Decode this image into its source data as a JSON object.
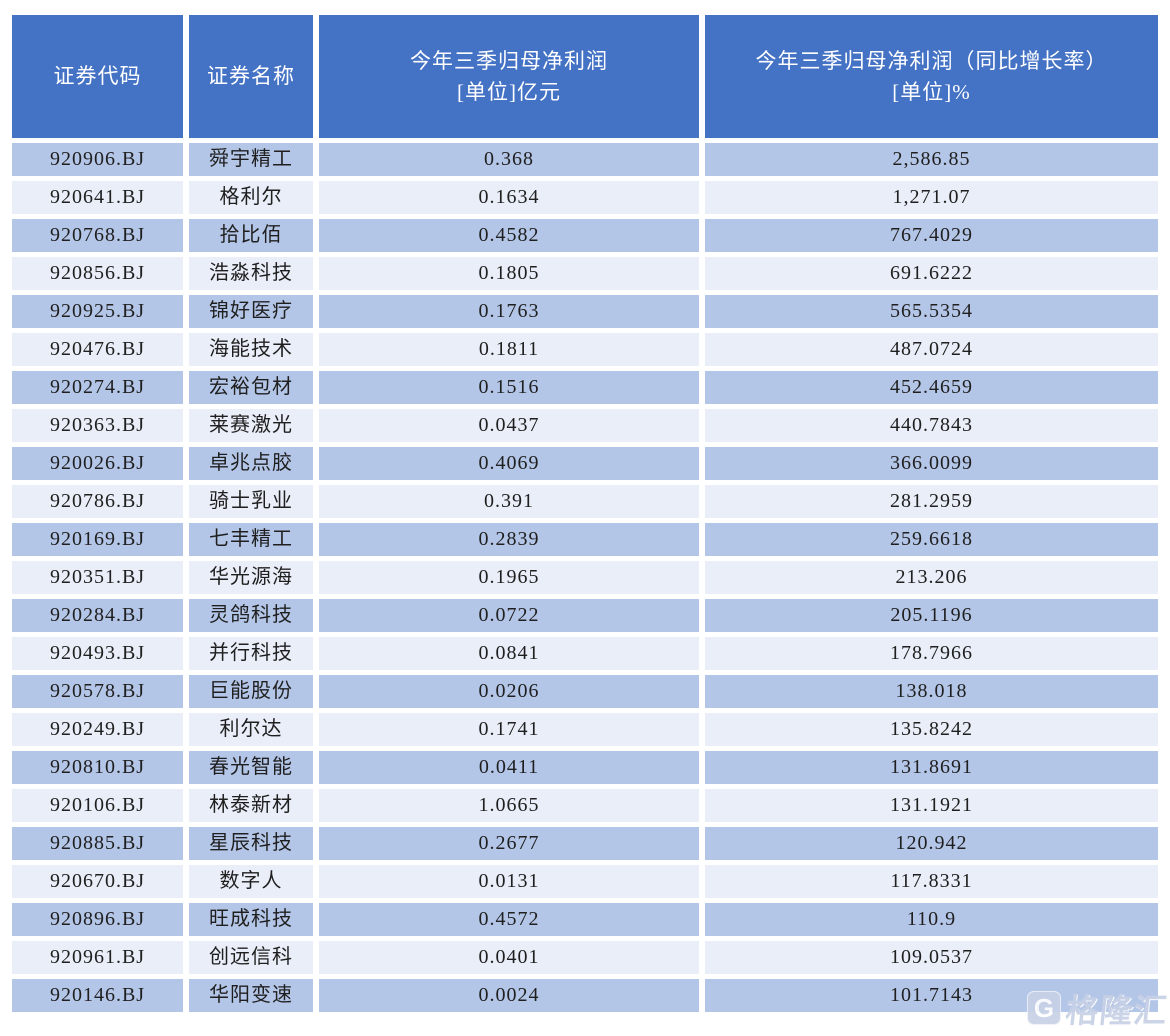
{
  "chart_data": {
    "type": "table",
    "columns": [
      {
        "line1": "证券代码",
        "line2": ""
      },
      {
        "line1": "证券名称",
        "line2": ""
      },
      {
        "line1": "今年三季归母净利润",
        "line2": "[单位]亿元"
      },
      {
        "line1": "今年三季归母净利润（同比增长率）",
        "line2": "[单位]%"
      }
    ],
    "rows": [
      {
        "code": "920906.BJ",
        "name": "舜宇精工",
        "profit": "0.368",
        "growth": "2,586.85"
      },
      {
        "code": "920641.BJ",
        "name": "格利尔",
        "profit": "0.1634",
        "growth": "1,271.07"
      },
      {
        "code": "920768.BJ",
        "name": "拾比佰",
        "profit": "0.4582",
        "growth": "767.4029"
      },
      {
        "code": "920856.BJ",
        "name": "浩淼科技",
        "profit": "0.1805",
        "growth": "691.6222"
      },
      {
        "code": "920925.BJ",
        "name": "锦好医疗",
        "profit": "0.1763",
        "growth": "565.5354"
      },
      {
        "code": "920476.BJ",
        "name": "海能技术",
        "profit": "0.1811",
        "growth": "487.0724"
      },
      {
        "code": "920274.BJ",
        "name": "宏裕包材",
        "profit": "0.1516",
        "growth": "452.4659"
      },
      {
        "code": "920363.BJ",
        "name": "莱赛激光",
        "profit": "0.0437",
        "growth": "440.7843"
      },
      {
        "code": "920026.BJ",
        "name": "卓兆点胶",
        "profit": "0.4069",
        "growth": "366.0099"
      },
      {
        "code": "920786.BJ",
        "name": "骑士乳业",
        "profit": "0.391",
        "growth": "281.2959"
      },
      {
        "code": "920169.BJ",
        "name": "七丰精工",
        "profit": "0.2839",
        "growth": "259.6618"
      },
      {
        "code": "920351.BJ",
        "name": "华光源海",
        "profit": "0.1965",
        "growth": "213.206"
      },
      {
        "code": "920284.BJ",
        "name": "灵鸽科技",
        "profit": "0.0722",
        "growth": "205.1196"
      },
      {
        "code": "920493.BJ",
        "name": "并行科技",
        "profit": "0.0841",
        "growth": "178.7966"
      },
      {
        "code": "920578.BJ",
        "name": "巨能股份",
        "profit": "0.0206",
        "growth": "138.018"
      },
      {
        "code": "920249.BJ",
        "name": "利尔达",
        "profit": "0.1741",
        "growth": "135.8242"
      },
      {
        "code": "920810.BJ",
        "name": "春光智能",
        "profit": "0.0411",
        "growth": "131.8691"
      },
      {
        "code": "920106.BJ",
        "name": "林泰新材",
        "profit": "1.0665",
        "growth": "131.1921"
      },
      {
        "code": "920885.BJ",
        "name": "星辰科技",
        "profit": "0.2677",
        "growth": "120.942"
      },
      {
        "code": "920670.BJ",
        "name": "数字人",
        "profit": "0.0131",
        "growth": "117.8331"
      },
      {
        "code": "920896.BJ",
        "name": "旺成科技",
        "profit": "0.4572",
        "growth": "110.9"
      },
      {
        "code": "920961.BJ",
        "name": "创远信科",
        "profit": "0.0401",
        "growth": "109.0537"
      },
      {
        "code": "920146.BJ",
        "name": "华阳变速",
        "profit": "0.0024",
        "growth": "101.7143"
      }
    ]
  },
  "watermark": {
    "logo_letter": "G",
    "text": "格隆汇"
  },
  "colors": {
    "header_bg": "#4472C4",
    "header_text": "#FFFFFF",
    "row_odd_bg": "#B4C6E7",
    "row_even_bg": "#E9EEF8",
    "body_text": "#1F1F1F",
    "watermark": "#C7D1E5"
  }
}
